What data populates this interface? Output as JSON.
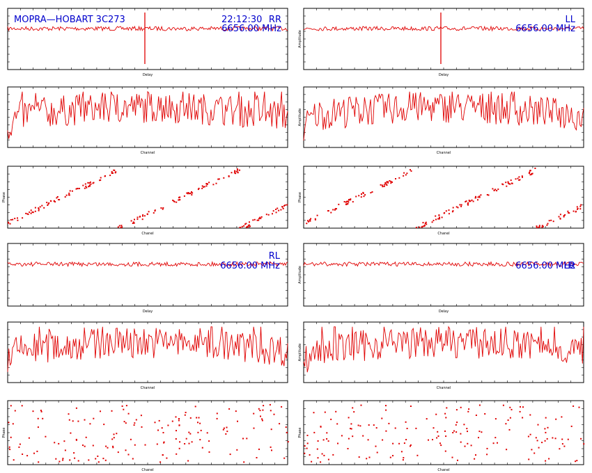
{
  "header": {
    "source": "MOPRA—HOBART 3C273",
    "time": "22:12:30",
    "frequency": "6656.00 MHz"
  },
  "colors": {
    "trace": "#e00000",
    "header_text": "#0000cc",
    "axis": "#000000"
  },
  "chart_data": [
    {
      "id": "RR-delay",
      "type": "line",
      "polarisation": "RR",
      "xlabel": "Delay",
      "ylabel": "",
      "ylim": [
        0,
        4
      ],
      "peak_x": 0
    },
    {
      "id": "LL-delay",
      "type": "line",
      "polarisation": "LL",
      "xlabel": "Delay",
      "ylabel": "Amplitude",
      "ylim": [
        0,
        4
      ],
      "peak_x": 0
    },
    {
      "id": "RR-amp",
      "type": "line",
      "xlabel": "Channel",
      "ylabel": "",
      "ylim": [
        0,
        5
      ]
    },
    {
      "id": "LL-amp",
      "type": "line",
      "xlabel": "Channel",
      "ylabel": "Amplitude",
      "ylim": [
        0,
        5
      ]
    },
    {
      "id": "RR-phase",
      "type": "scatter",
      "xlabel": "Chanel",
      "ylabel": "Phase",
      "ylim": [
        -180,
        180
      ]
    },
    {
      "id": "LL-phase",
      "type": "scatter",
      "xlabel": "Chanel",
      "ylabel": "Phase",
      "ylim": [
        -180,
        180
      ]
    },
    {
      "id": "RL-delay",
      "type": "line",
      "polarisation": "RL",
      "xlabel": "Delay",
      "ylabel": "",
      "ylim": [
        0,
        4
      ]
    },
    {
      "id": "LR-delay",
      "type": "line",
      "polarisation": "LR",
      "xlabel": "Delay",
      "ylabel": "Amplitude",
      "ylim": [
        0,
        4
      ]
    },
    {
      "id": "RL-amp",
      "type": "line",
      "xlabel": "Channel",
      "ylabel": "",
      "ylim": [
        0,
        5
      ]
    },
    {
      "id": "LR-amp",
      "type": "line",
      "xlabel": "Channel",
      "ylabel": "Amplitude",
      "ylim": [
        0,
        5
      ]
    },
    {
      "id": "RL-phase",
      "type": "scatter",
      "xlabel": "Chanel",
      "ylabel": "Phase",
      "ylim": [
        -180,
        180
      ]
    },
    {
      "id": "LR-phase",
      "type": "scatter",
      "xlabel": "Chanel",
      "ylabel": "Phase",
      "ylim": [
        -180,
        180
      ]
    }
  ]
}
